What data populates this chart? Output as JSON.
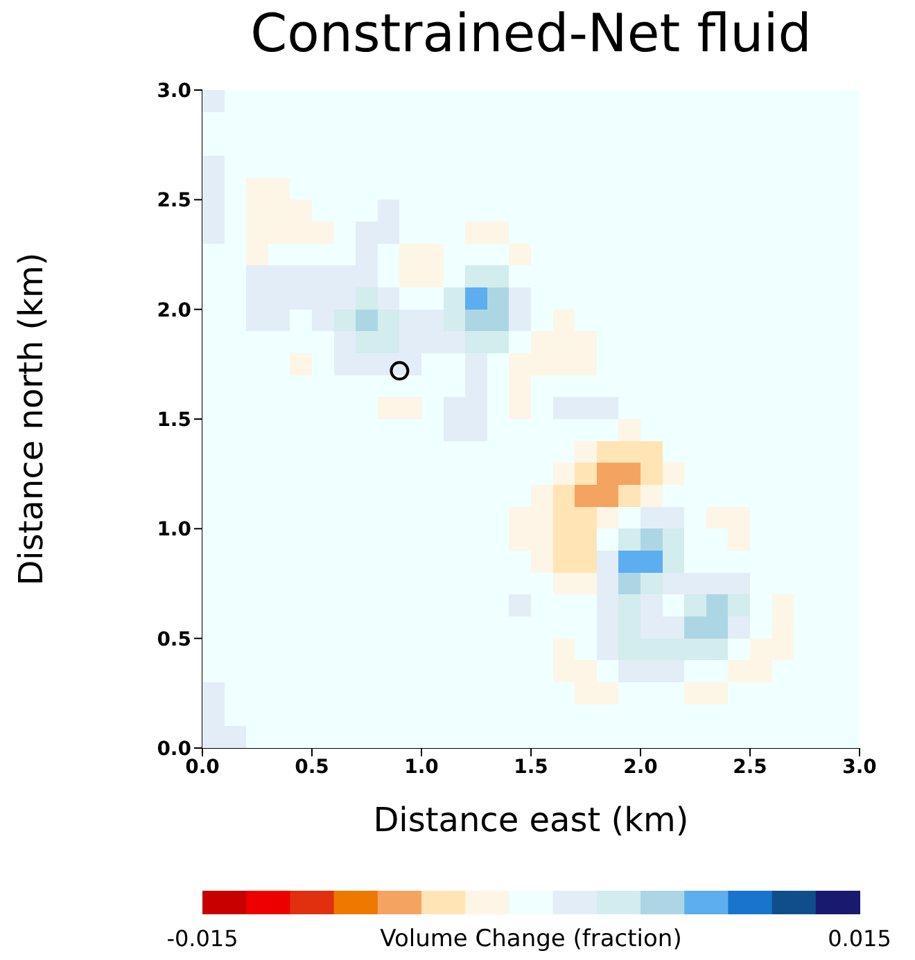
{
  "chart_data": {
    "type": "heatmap",
    "title": "Constrained-Net fluid",
    "xlabel": "Distance east (km)",
    "ylabel": "Distance north (km)",
    "clabel": "Volume Change (fraction)",
    "xlim": [
      0,
      3
    ],
    "ylim": [
      0,
      3
    ],
    "xticks": [
      {
        "value": 0,
        "label": "0.0"
      },
      {
        "value": 0.5,
        "label": "0.5"
      },
      {
        "value": 1,
        "label": "1.0"
      },
      {
        "value": 1.5,
        "label": "1.5"
      },
      {
        "value": 2,
        "label": "2.0"
      },
      {
        "value": 2.5,
        "label": "2.5"
      },
      {
        "value": 3,
        "label": "3.0"
      }
    ],
    "yticks": [
      {
        "value": 0,
        "label": "0.0"
      },
      {
        "value": 0.5,
        "label": "0.5"
      },
      {
        "value": 1,
        "label": "1.0"
      },
      {
        "value": 1.5,
        "label": "1.5"
      },
      {
        "value": 2,
        "label": "2.0"
      },
      {
        "value": 2.5,
        "label": "2.5"
      },
      {
        "value": 3,
        "label": "3.0"
      }
    ],
    "clim": [
      -0.015,
      0.015
    ],
    "cticks": [
      -0.015,
      0.015
    ],
    "cells": [
      [
        0.002,
        0,
        0,
        0,
        0,
        0,
        0,
        0,
        0,
        0,
        0,
        0,
        0,
        0,
        0,
        0,
        0,
        0,
        0,
        0,
        0,
        0,
        0,
        0,
        0,
        0,
        0,
        0,
        0,
        0
      ],
      [
        0,
        0,
        0,
        0,
        0,
        0,
        0,
        0,
        0,
        0,
        0,
        0,
        0,
        0,
        0,
        0,
        0,
        0,
        0,
        0,
        0,
        0,
        0,
        0,
        0,
        0,
        0,
        0,
        0,
        0
      ],
      [
        0,
        0,
        0,
        0,
        0,
        0,
        0,
        0,
        0,
        0,
        0,
        0,
        0,
        0,
        0,
        0,
        0,
        0,
        0,
        0,
        0,
        0,
        0,
        0,
        0,
        0,
        0,
        0,
        0,
        0
      ],
      [
        0.002,
        0,
        0,
        0,
        0,
        0,
        0,
        0,
        0,
        0,
        0,
        0,
        0,
        0,
        0,
        0,
        0,
        0,
        0,
        0,
        0,
        0,
        0,
        0,
        0,
        0,
        0,
        0,
        0,
        0
      ],
      [
        0.002,
        0,
        -0.002,
        -0.002,
        0,
        0,
        0,
        0,
        0,
        0,
        0,
        0,
        0,
        0,
        0,
        0,
        0,
        0,
        0,
        0,
        0,
        0,
        0,
        0,
        0,
        0,
        0,
        0,
        0,
        0
      ],
      [
        0.002,
        0,
        -0.002,
        -0.002,
        -0.002,
        0,
        0,
        0,
        0.002,
        0,
        0,
        0,
        0,
        0,
        0,
        0,
        0,
        0,
        0,
        0,
        0,
        0,
        0,
        0,
        0,
        0,
        0,
        0,
        0,
        0
      ],
      [
        0.002,
        0,
        -0.002,
        -0.002,
        -0.002,
        -0.002,
        0,
        0.002,
        0.002,
        0,
        0,
        0,
        -0.002,
        -0.002,
        0,
        0,
        0,
        0,
        0,
        0,
        0,
        0,
        0,
        0,
        0,
        0,
        0,
        0,
        0,
        0
      ],
      [
        0,
        0,
        -0.002,
        0,
        0,
        0,
        0,
        0.002,
        0,
        -0.002,
        -0.002,
        0,
        0,
        0,
        -0.002,
        0,
        0,
        0,
        0,
        0,
        0,
        0,
        0,
        0,
        0,
        0,
        0,
        0,
        0,
        0
      ],
      [
        0,
        0,
        0.002,
        0.002,
        0.002,
        0.002,
        0.002,
        0.002,
        0,
        -0.002,
        -0.002,
        0,
        0.004,
        0.004,
        0,
        0,
        0,
        0,
        0,
        0,
        0,
        0,
        0,
        0,
        0,
        0,
        0,
        0,
        0,
        0
      ],
      [
        0,
        0,
        0.002,
        0.002,
        0.002,
        0.002,
        0.002,
        0.004,
        0.002,
        0,
        0,
        0.004,
        0.008,
        0.006,
        0.002,
        0,
        0,
        0,
        0,
        0,
        0,
        0,
        0,
        0,
        0,
        0,
        0,
        0,
        0,
        0
      ],
      [
        0,
        0,
        0.002,
        0.002,
        0,
        0.002,
        0.004,
        0.006,
        0.004,
        0.002,
        0.002,
        0.004,
        0.006,
        0.006,
        0.002,
        0,
        -0.002,
        0,
        0,
        0,
        0,
        0,
        0,
        0,
        0,
        0,
        0,
        0,
        0,
        0
      ],
      [
        0,
        0,
        0,
        0,
        0,
        0,
        0.002,
        0.004,
        0.004,
        0.002,
        0.002,
        0.002,
        0.004,
        0.004,
        0,
        -0.002,
        -0.002,
        -0.002,
        0,
        0,
        0,
        0,
        0,
        0,
        0,
        0,
        0,
        0,
        0,
        0
      ],
      [
        0,
        0,
        0,
        0,
        -0.002,
        0,
        0.002,
        0.002,
        0.002,
        0.002,
        0,
        0,
        0.002,
        0,
        -0.002,
        -0.002,
        -0.002,
        -0.002,
        0,
        0,
        0,
        0,
        0,
        0,
        0,
        0,
        0,
        0,
        0,
        0
      ],
      [
        0,
        0,
        0,
        0,
        0,
        0,
        0,
        0,
        0,
        0,
        0,
        0,
        0.002,
        0,
        -0.002,
        0,
        0,
        0,
        0,
        0,
        0,
        0,
        0,
        0,
        0,
        0,
        0,
        0,
        0,
        0
      ],
      [
        0,
        0,
        0,
        0,
        0,
        0,
        0,
        0,
        -0.002,
        -0.002,
        0,
        0.002,
        0.002,
        0,
        -0.002,
        0,
        0.002,
        0.002,
        0.002,
        0,
        0,
        0,
        0,
        0,
        0,
        0,
        0,
        0,
        0,
        0
      ],
      [
        0,
        0,
        0,
        0,
        0,
        0,
        0,
        0,
        0,
        0,
        0,
        0.002,
        0.002,
        0,
        0,
        0,
        0,
        0,
        0,
        -0.002,
        0,
        0,
        0,
        0,
        0,
        0,
        0,
        0,
        0,
        0
      ],
      [
        0,
        0,
        0,
        0,
        0,
        0,
        0,
        0,
        0,
        0,
        0,
        0,
        0,
        0,
        0,
        0,
        0,
        -0.002,
        -0.004,
        -0.004,
        -0.004,
        0,
        0,
        0,
        0,
        0,
        0,
        0,
        0,
        0
      ],
      [
        0,
        0,
        0,
        0,
        0,
        0,
        0,
        0,
        0,
        0,
        0,
        0,
        0,
        0,
        0,
        0,
        -0.002,
        -0.004,
        -0.006,
        -0.006,
        -0.004,
        -0.002,
        0,
        0,
        0,
        0,
        0,
        0,
        0,
        0
      ],
      [
        0,
        0,
        0,
        0,
        0,
        0,
        0,
        0,
        0,
        0,
        0,
        0,
        0,
        0,
        0,
        -0.002,
        -0.004,
        -0.006,
        -0.006,
        -0.004,
        -0.002,
        0,
        0,
        0,
        0,
        0,
        0,
        0,
        0,
        0
      ],
      [
        0,
        0,
        0,
        0,
        0,
        0,
        0,
        0,
        0,
        0,
        0,
        0,
        0,
        0,
        -0.002,
        -0.002,
        -0.004,
        -0.004,
        -0.002,
        0,
        0.002,
        0.002,
        0,
        -0.002,
        -0.002,
        0,
        0,
        0,
        0,
        0
      ],
      [
        0,
        0,
        0,
        0,
        0,
        0,
        0,
        0,
        0,
        0,
        0,
        0,
        0,
        0,
        -0.002,
        -0.002,
        -0.004,
        -0.004,
        0,
        0.004,
        0.006,
        0.004,
        0,
        0,
        -0.002,
        0,
        0,
        0,
        0,
        0
      ],
      [
        0,
        0,
        0,
        0,
        0,
        0,
        0,
        0,
        0,
        0,
        0,
        0,
        0,
        0,
        0,
        -0.002,
        -0.004,
        -0.004,
        0.002,
        0.008,
        0.008,
        0.004,
        0,
        0,
        0,
        0,
        0,
        0,
        0,
        0
      ],
      [
        0,
        0,
        0,
        0,
        0,
        0,
        0,
        0,
        0,
        0,
        0,
        0,
        0,
        0,
        0,
        0,
        -0.002,
        -0.002,
        0.002,
        0.006,
        0.004,
        0.002,
        0.002,
        0.002,
        0.002,
        0,
        0,
        0,
        0,
        0
      ],
      [
        0,
        0,
        0,
        0,
        0,
        0,
        0,
        0,
        0,
        0,
        0,
        0,
        0,
        0,
        0.002,
        0,
        0,
        0,
        0.002,
        0.004,
        0.002,
        0,
        0.004,
        0.006,
        0.004,
        0,
        -0.002,
        0,
        0,
        0
      ],
      [
        0,
        0,
        0,
        0,
        0,
        0,
        0,
        0,
        0,
        0,
        0,
        0,
        0,
        0,
        0,
        0,
        0,
        0,
        0.002,
        0.004,
        0.002,
        0.002,
        0.006,
        0.006,
        0.002,
        0,
        -0.002,
        0,
        0,
        0
      ],
      [
        0,
        0,
        0,
        0,
        0,
        0,
        0,
        0,
        0,
        0,
        0,
        0,
        0,
        0,
        0,
        0,
        -0.002,
        0,
        0.002,
        0.004,
        0.004,
        0.004,
        0.004,
        0.004,
        0,
        -0.002,
        -0.002,
        0,
        0,
        0
      ],
      [
        0,
        0,
        0,
        0,
        0,
        0,
        0,
        0,
        0,
        0,
        0,
        0,
        0,
        0,
        0,
        0,
        -0.002,
        -0.002,
        0,
        0.002,
        0.002,
        0.002,
        0,
        0,
        -0.002,
        -0.002,
        0,
        0,
        0,
        0
      ],
      [
        0.002,
        0,
        0,
        0,
        0,
        0,
        0,
        0,
        0,
        0,
        0,
        0,
        0,
        0,
        0,
        0,
        0,
        -0.002,
        -0.002,
        0,
        0,
        0,
        -0.002,
        -0.002,
        0,
        0,
        0,
        0,
        0,
        0
      ],
      [
        0.002,
        0,
        0,
        0,
        0,
        0,
        0,
        0,
        0,
        0,
        0,
        0,
        0,
        0,
        0,
        0,
        0,
        0,
        0,
        0,
        0,
        0,
        0,
        0,
        0,
        0,
        0,
        0,
        0,
        0
      ],
      [
        0.002,
        0.002,
        0,
        0,
        0,
        0,
        0,
        0,
        0,
        0,
        0,
        0,
        0,
        0,
        0,
        0,
        0,
        0,
        0,
        0,
        0,
        0,
        0,
        0,
        0,
        0,
        0,
        0,
        0,
        0
      ]
    ],
    "series": [
      {
        "type": "scatter",
        "x": [
          0.9
        ],
        "values": [
          1.72
        ],
        "color": "#000000",
        "marker": "circle"
      }
    ]
  }
}
